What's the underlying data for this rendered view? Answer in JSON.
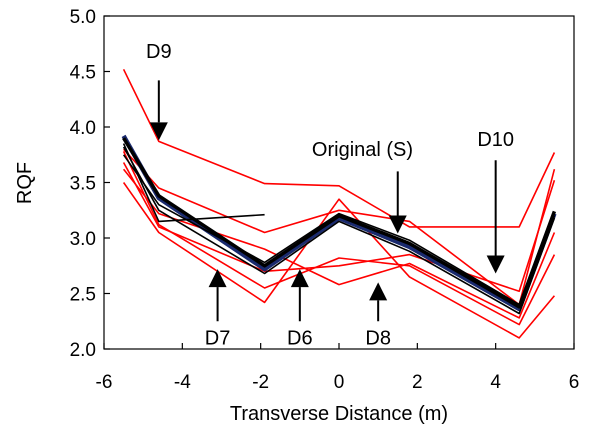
{
  "chart_data": {
    "type": "line",
    "title": "",
    "xlabel": "Transverse Distance (m)",
    "ylabel": "RQF",
    "xlim": [
      -6,
      6
    ],
    "ylim": [
      2.0,
      5.0
    ],
    "xticks": [
      -6,
      -4,
      -2,
      0,
      2,
      4,
      6
    ],
    "yticks": [
      2.0,
      2.5,
      3.0,
      3.5,
      4.0,
      4.5,
      5.0
    ],
    "xtick_labels": [
      "-6",
      "-4",
      "-2",
      "0",
      "2",
      "4",
      "6"
    ],
    "ytick_labels": [
      "2.0",
      "2.5",
      "3.0",
      "3.5",
      "4.0",
      "4.5",
      "5.0"
    ],
    "grid": false,
    "colors": {
      "red": "#ff0000",
      "black": "#000000",
      "navy": "#1a2a6e"
    },
    "x": [
      -5.5,
      -4.6,
      -1.9,
      0,
      1.8,
      4.6,
      5.5
    ],
    "series": [
      {
        "color": "#1a2a6e",
        "width": 4.5,
        "values": [
          3.92,
          3.36,
          2.72,
          3.18,
          2.92,
          2.36,
          3.22
        ]
      },
      {
        "color": "#000000",
        "width": 3.5,
        "values": [
          3.9,
          3.38,
          2.75,
          3.2,
          2.95,
          2.38,
          3.24
        ]
      },
      {
        "color": "#000000",
        "width": 1.6,
        "values": [
          3.75,
          3.3,
          2.78,
          3.22,
          2.98,
          2.4,
          3.2
        ]
      },
      {
        "color": "#000000",
        "width": 1.6,
        "values": [
          3.82,
          3.25,
          2.68,
          3.15,
          2.88,
          2.32,
          3.18
        ]
      },
      {
        "color": "#000000",
        "width": 1.6,
        "values": [
          3.85,
          3.15,
          3.21,
          null,
          null,
          null,
          null
        ]
      },
      {
        "color": "#ff0000",
        "width": 1.6,
        "values": [
          4.52,
          3.87,
          3.49,
          3.47,
          3.1,
          3.1,
          3.77
        ]
      },
      {
        "color": "#ff0000",
        "width": 1.6,
        "values": [
          3.5,
          3.05,
          2.42,
          3.35,
          2.65,
          2.1,
          2.48
        ]
      },
      {
        "color": "#ff0000",
        "width": 1.6,
        "values": [
          3.78,
          3.12,
          2.55,
          2.82,
          2.75,
          2.22,
          2.85
        ]
      },
      {
        "color": "#ff0000",
        "width": 1.6,
        "values": [
          3.62,
          3.22,
          2.9,
          2.58,
          2.77,
          2.28,
          3.05
        ]
      },
      {
        "color": "#ff0000",
        "width": 1.6,
        "values": [
          3.68,
          3.1,
          2.7,
          2.75,
          2.85,
          2.52,
          3.52
        ]
      },
      {
        "color": "#ff0000",
        "width": 1.6,
        "values": [
          3.8,
          3.45,
          3.05,
          3.25,
          3.15,
          2.4,
          3.62
        ]
      }
    ],
    "annotations": [
      {
        "label": "D9",
        "label_at": [
          -4.6,
          4.62
        ],
        "arrow_from": [
          -4.6,
          4.42
        ],
        "arrow_to": [
          -4.6,
          3.88
        ],
        "dir": "down"
      },
      {
        "label": "Original (S)",
        "label_at": [
          0.6,
          3.74
        ],
        "arrow_from": [
          1.5,
          3.6
        ],
        "arrow_to": [
          1.5,
          3.04
        ],
        "dir": "down"
      },
      {
        "label": "D10",
        "label_at": [
          4.0,
          3.83
        ],
        "arrow_from": [
          4.0,
          3.7
        ],
        "arrow_to": [
          4.0,
          2.68
        ],
        "dir": "down"
      },
      {
        "label": "D7",
        "label_at": [
          -3.1,
          2.04
        ],
        "arrow_from": [
          -3.1,
          2.25
        ],
        "arrow_to": [
          -3.1,
          2.72
        ],
        "dir": "up"
      },
      {
        "label": "D6",
        "label_at": [
          -1.0,
          2.04
        ],
        "arrow_from": [
          -1.0,
          2.25
        ],
        "arrow_to": [
          -1.0,
          2.72
        ],
        "dir": "up"
      },
      {
        "label": "D8",
        "label_at": [
          1.0,
          2.04
        ],
        "arrow_from": [
          1.0,
          2.25
        ],
        "arrow_to": [
          1.0,
          2.6
        ],
        "dir": "up"
      }
    ]
  }
}
